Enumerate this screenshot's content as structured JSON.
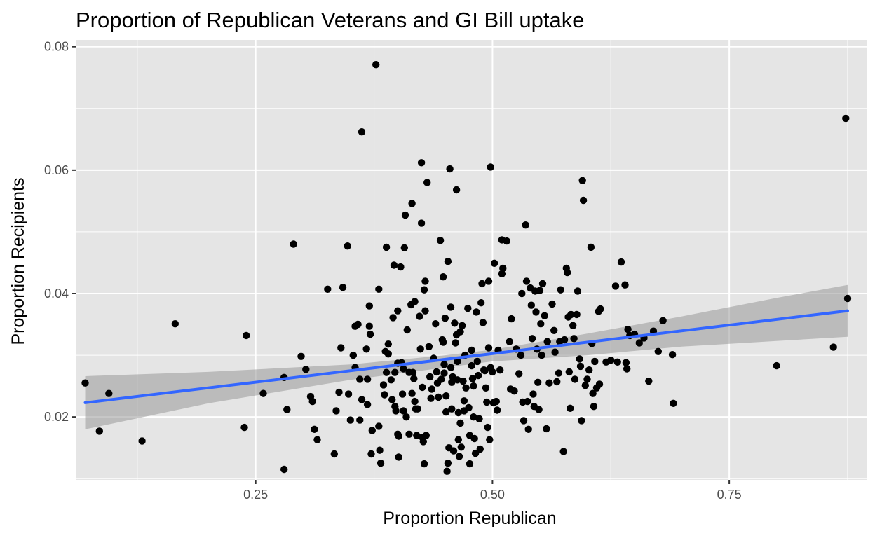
{
  "chart_data": {
    "type": "scatter",
    "title": "Proportion of Republican Veterans and GI Bill uptake",
    "xlabel": "Proportion Republican",
    "ylabel": "Proportion Recipients",
    "xlim": [
      0.06,
      0.895
    ],
    "ylim": [
      0.0098,
      0.0811
    ],
    "x_ticks": [
      0.25,
      0.5,
      0.75
    ],
    "x_tick_labels": [
      "0.25",
      "0.50",
      "0.75"
    ],
    "y_ticks": [
      0.02,
      0.04,
      0.06,
      0.08
    ],
    "y_tick_labels": [
      "0.02",
      "0.04",
      "0.06",
      "0.08"
    ],
    "grid": true,
    "background": "#e5e5e5",
    "gridline_color": "#ffffff",
    "point_color": "#000000",
    "trend_color": "#3366ff",
    "ribbon_color": "#999999",
    "trend_line": {
      "x": [
        0.07,
        0.875
      ],
      "y": [
        0.0223,
        0.0372
      ]
    },
    "confidence_band": {
      "x": [
        0.07,
        0.2,
        0.35,
        0.45,
        0.5,
        0.6,
        0.7,
        0.8,
        0.875
      ],
      "lower": [
        0.018,
        0.0222,
        0.026,
        0.028,
        0.029,
        0.03,
        0.0314,
        0.0323,
        0.033
      ],
      "upper": [
        0.0266,
        0.0273,
        0.0285,
        0.03,
        0.0309,
        0.0335,
        0.0363,
        0.0393,
        0.0414
      ]
    },
    "points": [
      [
        0.07,
        0.0255
      ],
      [
        0.085,
        0.0177
      ],
      [
        0.095,
        0.0238
      ],
      [
        0.13,
        0.0161
      ],
      [
        0.165,
        0.0351
      ],
      [
        0.24,
        0.0332
      ],
      [
        0.238,
        0.0183
      ],
      [
        0.258,
        0.0238
      ],
      [
        0.28,
        0.0264
      ],
      [
        0.283,
        0.0212
      ],
      [
        0.28,
        0.0115
      ],
      [
        0.29,
        0.048
      ],
      [
        0.298,
        0.0298
      ],
      [
        0.303,
        0.0277
      ],
      [
        0.308,
        0.0233
      ],
      [
        0.31,
        0.0225
      ],
      [
        0.312,
        0.018
      ],
      [
        0.315,
        0.0163
      ],
      [
        0.326,
        0.0407
      ],
      [
        0.333,
        0.014
      ],
      [
        0.335,
        0.021
      ],
      [
        0.338,
        0.024
      ],
      [
        0.34,
        0.0312
      ],
      [
        0.342,
        0.041
      ],
      [
        0.347,
        0.0477
      ],
      [
        0.348,
        0.0237
      ],
      [
        0.35,
        0.0195
      ],
      [
        0.353,
        0.03
      ],
      [
        0.355,
        0.028
      ],
      [
        0.355,
        0.0347
      ],
      [
        0.358,
        0.035
      ],
      [
        0.36,
        0.0195
      ],
      [
        0.36,
        0.0261
      ],
      [
        0.362,
        0.0228
      ],
      [
        0.362,
        0.0662
      ],
      [
        0.367,
        0.031
      ],
      [
        0.368,
        0.0261
      ],
      [
        0.368,
        0.022
      ],
      [
        0.37,
        0.038
      ],
      [
        0.37,
        0.0347
      ],
      [
        0.371,
        0.0334
      ],
      [
        0.372,
        0.014
      ],
      [
        0.373,
        0.0178
      ],
      [
        0.377,
        0.0771
      ],
      [
        0.38,
        0.0407
      ],
      [
        0.38,
        0.0185
      ],
      [
        0.381,
        0.0146
      ],
      [
        0.382,
        0.0125
      ],
      [
        0.385,
        0.0252
      ],
      [
        0.386,
        0.0236
      ],
      [
        0.387,
        0.0306
      ],
      [
        0.388,
        0.0272
      ],
      [
        0.388,
        0.0475
      ],
      [
        0.39,
        0.0318
      ],
      [
        0.39,
        0.0302
      ],
      [
        0.393,
        0.026
      ],
      [
        0.394,
        0.0228
      ],
      [
        0.395,
        0.0361
      ],
      [
        0.396,
        0.0446
      ],
      [
        0.397,
        0.0272
      ],
      [
        0.397,
        0.0217
      ],
      [
        0.398,
        0.021
      ],
      [
        0.4,
        0.0372
      ],
      [
        0.4,
        0.0287
      ],
      [
        0.4,
        0.0172
      ],
      [
        0.401,
        0.0169
      ],
      [
        0.401,
        0.0135
      ],
      [
        0.403,
        0.0443
      ],
      [
        0.404,
        0.0288
      ],
      [
        0.405,
        0.0237
      ],
      [
        0.406,
        0.0278
      ],
      [
        0.406,
        0.021
      ],
      [
        0.407,
        0.0474
      ],
      [
        0.408,
        0.0527
      ],
      [
        0.409,
        0.02
      ],
      [
        0.41,
        0.0341
      ],
      [
        0.412,
        0.0272
      ],
      [
        0.412,
        0.0172
      ],
      [
        0.414,
        0.0382
      ],
      [
        0.415,
        0.0546
      ],
      [
        0.415,
        0.0238
      ],
      [
        0.416,
        0.0272
      ],
      [
        0.417,
        0.0262
      ],
      [
        0.418,
        0.0387
      ],
      [
        0.418,
        0.0225
      ],
      [
        0.419,
        0.0213
      ],
      [
        0.42,
        0.017
      ],
      [
        0.421,
        0.0213
      ],
      [
        0.423,
        0.0363
      ],
      [
        0.424,
        0.031
      ],
      [
        0.425,
        0.0612
      ],
      [
        0.425,
        0.0514
      ],
      [
        0.426,
        0.0248
      ],
      [
        0.426,
        0.0167
      ],
      [
        0.427,
        0.016
      ],
      [
        0.428,
        0.0124
      ],
      [
        0.428,
        0.0406
      ],
      [
        0.429,
        0.042
      ],
      [
        0.429,
        0.0372
      ],
      [
        0.43,
        0.017
      ],
      [
        0.431,
        0.058
      ],
      [
        0.433,
        0.0314
      ],
      [
        0.434,
        0.0265
      ],
      [
        0.435,
        0.023
      ],
      [
        0.436,
        0.0245
      ],
      [
        0.438,
        0.0295
      ],
      [
        0.44,
        0.0351
      ],
      [
        0.441,
        0.0273
      ],
      [
        0.442,
        0.0255
      ],
      [
        0.443,
        0.0232
      ],
      [
        0.445,
        0.0486
      ],
      [
        0.446,
        0.0261
      ],
      [
        0.447,
        0.0325
      ],
      [
        0.448,
        0.0321
      ],
      [
        0.448,
        0.0427
      ],
      [
        0.449,
        0.0285
      ],
      [
        0.449,
        0.0271
      ],
      [
        0.45,
        0.036
      ],
      [
        0.451,
        0.0234
      ],
      [
        0.451,
        0.0208
      ],
      [
        0.452,
        0.0112
      ],
      [
        0.453,
        0.0452
      ],
      [
        0.453,
        0.0125
      ],
      [
        0.454,
        0.015
      ],
      [
        0.455,
        0.0602
      ],
      [
        0.456,
        0.0378
      ],
      [
        0.456,
        0.028
      ],
      [
        0.457,
        0.0256
      ],
      [
        0.457,
        0.0213
      ],
      [
        0.458,
        0.0265
      ],
      [
        0.459,
        0.0145
      ],
      [
        0.46,
        0.0352
      ],
      [
        0.461,
        0.032
      ],
      [
        0.462,
        0.0333
      ],
      [
        0.462,
        0.0568
      ],
      [
        0.463,
        0.029
      ],
      [
        0.463,
        0.026
      ],
      [
        0.464,
        0.0207
      ],
      [
        0.464,
        0.0163
      ],
      [
        0.465,
        0.0136
      ],
      [
        0.466,
        0.0338
      ],
      [
        0.466,
        0.019
      ],
      [
        0.467,
        0.0151
      ],
      [
        0.468,
        0.0348
      ],
      [
        0.469,
        0.0258
      ],
      [
        0.47,
        0.0226
      ],
      [
        0.47,
        0.021
      ],
      [
        0.471,
        0.03
      ],
      [
        0.472,
        0.0247
      ],
      [
        0.474,
        0.0376
      ],
      [
        0.475,
        0.0215
      ],
      [
        0.476,
        0.017
      ],
      [
        0.476,
        0.0124
      ],
      [
        0.478,
        0.0308
      ],
      [
        0.478,
        0.0283
      ],
      [
        0.479,
        0.0262
      ],
      [
        0.48,
        0.025
      ],
      [
        0.48,
        0.02
      ],
      [
        0.481,
        0.0165
      ],
      [
        0.482,
        0.0141
      ],
      [
        0.483,
        0.037
      ],
      [
        0.484,
        0.029
      ],
      [
        0.485,
        0.0267
      ],
      [
        0.486,
        0.0197
      ],
      [
        0.487,
        0.0148
      ],
      [
        0.488,
        0.0385
      ],
      [
        0.489,
        0.0416
      ],
      [
        0.49,
        0.0353
      ],
      [
        0.491,
        0.0276
      ],
      [
        0.492,
        0.0275
      ],
      [
        0.493,
        0.0247
      ],
      [
        0.494,
        0.0224
      ],
      [
        0.495,
        0.0183
      ],
      [
        0.496,
        0.042
      ],
      [
        0.496,
        0.0312
      ],
      [
        0.497,
        0.0163
      ],
      [
        0.498,
        0.0605
      ],
      [
        0.498,
        0.028
      ],
      [
        0.5,
        0.0273
      ],
      [
        0.501,
        0.0223
      ],
      [
        0.502,
        0.0449
      ],
      [
        0.504,
        0.0225
      ],
      [
        0.505,
        0.0211
      ],
      [
        0.506,
        0.0308
      ],
      [
        0.508,
        0.0276
      ],
      [
        0.51,
        0.0432
      ],
      [
        0.51,
        0.0487
      ],
      [
        0.511,
        0.0441
      ],
      [
        0.515,
        0.0485
      ],
      [
        0.518,
        0.0322
      ],
      [
        0.519,
        0.0245
      ],
      [
        0.52,
        0.0359
      ],
      [
        0.523,
        0.0242
      ],
      [
        0.525,
        0.031
      ],
      [
        0.528,
        0.027
      ],
      [
        0.53,
        0.03
      ],
      [
        0.531,
        0.04
      ],
      [
        0.532,
        0.0224
      ],
      [
        0.533,
        0.0194
      ],
      [
        0.535,
        0.0511
      ],
      [
        0.536,
        0.042
      ],
      [
        0.537,
        0.0225
      ],
      [
        0.538,
        0.018
      ],
      [
        0.54,
        0.0409
      ],
      [
        0.541,
        0.0381
      ],
      [
        0.542,
        0.0327
      ],
      [
        0.543,
        0.0237
      ],
      [
        0.544,
        0.0217
      ],
      [
        0.545,
        0.0404
      ],
      [
        0.546,
        0.037
      ],
      [
        0.547,
        0.031
      ],
      [
        0.548,
        0.0256
      ],
      [
        0.549,
        0.0212
      ],
      [
        0.55,
        0.0405
      ],
      [
        0.551,
        0.0351
      ],
      [
        0.552,
        0.03
      ],
      [
        0.553,
        0.0416
      ],
      [
        0.555,
        0.0364
      ],
      [
        0.557,
        0.0181
      ],
      [
        0.558,
        0.0322
      ],
      [
        0.56,
        0.0255
      ],
      [
        0.563,
        0.0383
      ],
      [
        0.565,
        0.034
      ],
      [
        0.566,
        0.0305
      ],
      [
        0.568,
        0.0257
      ],
      [
        0.57,
        0.0271
      ],
      [
        0.571,
        0.0322
      ],
      [
        0.572,
        0.0406
      ],
      [
        0.575,
        0.0144
      ],
      [
        0.576,
        0.0325
      ],
      [
        0.578,
        0.0441
      ],
      [
        0.579,
        0.0434
      ],
      [
        0.58,
        0.0362
      ],
      [
        0.581,
        0.0273
      ],
      [
        0.582,
        0.0214
      ],
      [
        0.583,
        0.0366
      ],
      [
        0.585,
        0.0348
      ],
      [
        0.586,
        0.0327
      ],
      [
        0.587,
        0.0261
      ],
      [
        0.589,
        0.0366
      ],
      [
        0.59,
        0.0404
      ],
      [
        0.592,
        0.0294
      ],
      [
        0.593,
        0.0282
      ],
      [
        0.594,
        0.0194
      ],
      [
        0.595,
        0.0583
      ],
      [
        0.596,
        0.0551
      ],
      [
        0.598,
        0.0251
      ],
      [
        0.6,
        0.0261
      ],
      [
        0.602,
        0.0276
      ],
      [
        0.604,
        0.0475
      ],
      [
        0.605,
        0.0319
      ],
      [
        0.606,
        0.0238
      ],
      [
        0.607,
        0.0217
      ],
      [
        0.608,
        0.029
      ],
      [
        0.61,
        0.0247
      ],
      [
        0.612,
        0.0371
      ],
      [
        0.613,
        0.0253
      ],
      [
        0.614,
        0.0375
      ],
      [
        0.62,
        0.0289
      ],
      [
        0.625,
        0.0292
      ],
      [
        0.63,
        0.0412
      ],
      [
        0.632,
        0.0289
      ],
      [
        0.636,
        0.0451
      ],
      [
        0.64,
        0.0414
      ],
      [
        0.641,
        0.0288
      ],
      [
        0.642,
        0.0278
      ],
      [
        0.643,
        0.0342
      ],
      [
        0.645,
        0.0332
      ],
      [
        0.65,
        0.0334
      ],
      [
        0.655,
        0.032
      ],
      [
        0.66,
        0.0328
      ],
      [
        0.665,
        0.0258
      ],
      [
        0.67,
        0.0339
      ],
      [
        0.675,
        0.0306
      ],
      [
        0.68,
        0.0356
      ],
      [
        0.69,
        0.0301
      ],
      [
        0.691,
        0.0222
      ],
      [
        0.8,
        0.0283
      ],
      [
        0.86,
        0.0313
      ],
      [
        0.873,
        0.0684
      ],
      [
        0.875,
        0.0392
      ]
    ]
  }
}
